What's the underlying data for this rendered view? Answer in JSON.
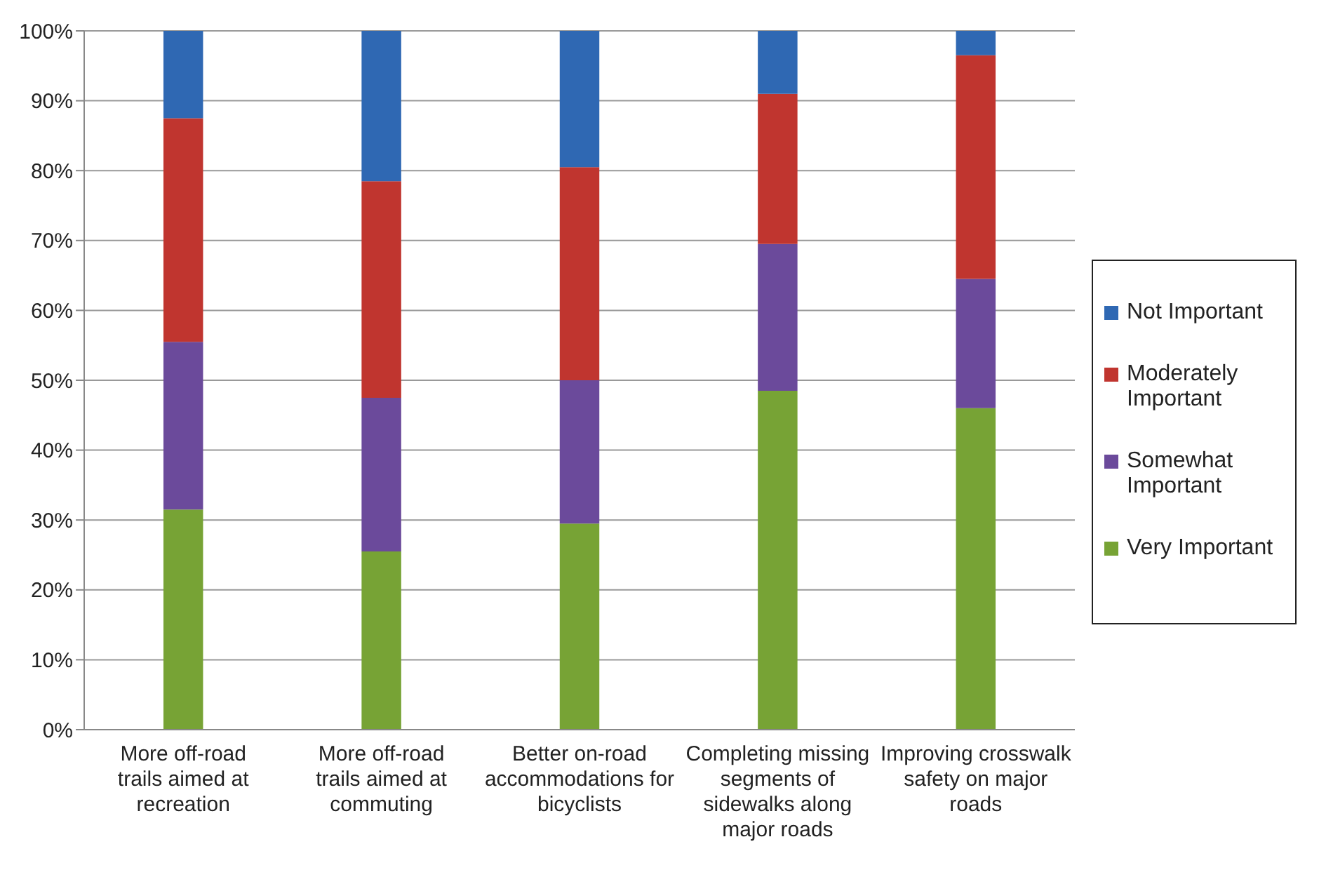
{
  "chart_data": {
    "type": "bar",
    "stacked": true,
    "categories": [
      "More off-road trails aimed at recreation",
      "More off-road trails aimed at commuting",
      "Better on-road accommodations for bicyclists",
      "Completing missing segments of sidewalks along major roads",
      "Improving crosswalk safety on major roads"
    ],
    "series": [
      {
        "name": "Very Important",
        "color": "#77a335",
        "values": [
          31.5,
          25.5,
          29.5,
          48.5,
          46
        ]
      },
      {
        "name": "Somewhat Important",
        "color": "#6b4a9b",
        "values": [
          24,
          22,
          20.5,
          21,
          18.5
        ]
      },
      {
        "name": "Moderately Important",
        "color": "#c0352f",
        "values": [
          32,
          31,
          30.5,
          21.5,
          32
        ]
      },
      {
        "name": "Not Important",
        "color": "#2f68b3",
        "values": [
          12.5,
          21.5,
          19.5,
          9,
          3.5
        ]
      }
    ],
    "ylim": [
      0,
      100
    ],
    "yticks": [
      {
        "value": 0,
        "label": "0%"
      },
      {
        "value": 10,
        "label": "10%"
      },
      {
        "value": 20,
        "label": "20%"
      },
      {
        "value": 30,
        "label": "30%"
      },
      {
        "value": 40,
        "label": "40%"
      },
      {
        "value": 50,
        "label": "50%"
      },
      {
        "value": 60,
        "label": "60%"
      },
      {
        "value": 70,
        "label": "70%"
      },
      {
        "value": 80,
        "label": "80%"
      },
      {
        "value": 90,
        "label": "90%"
      },
      {
        "value": 100,
        "label": "100%"
      }
    ],
    "grid": "y",
    "legend": "right"
  }
}
